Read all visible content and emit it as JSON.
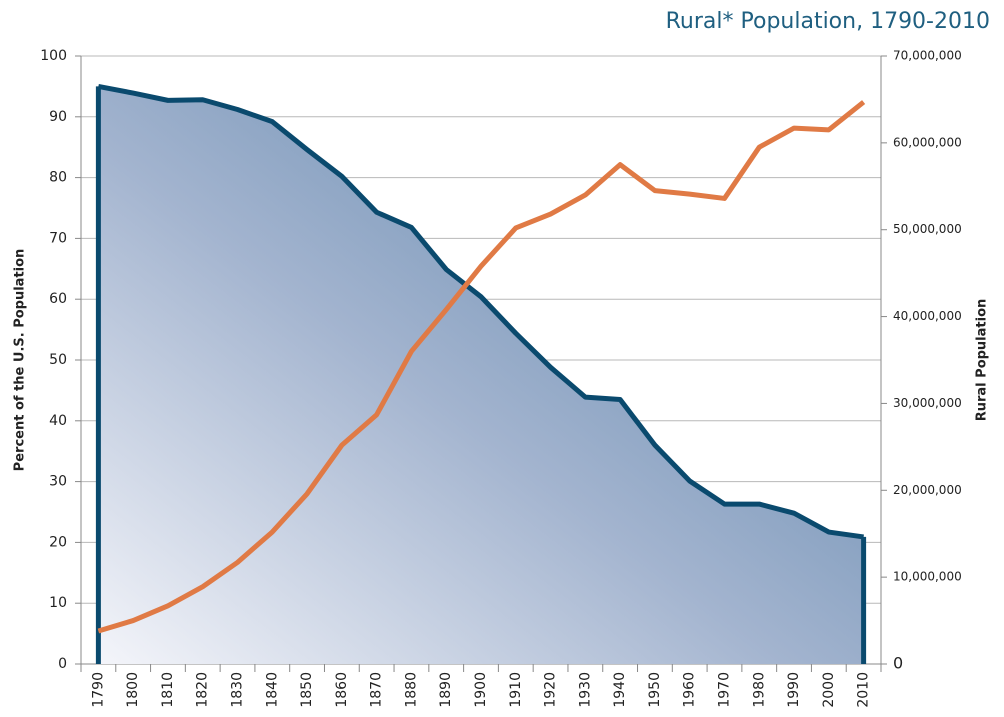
{
  "chart_data": {
    "type": "line",
    "title": "Rural* Population, 1790-2010",
    "ylabel": "Percent of the U.S. Population",
    "y2label": "Rural Population",
    "categories": [
      "1790",
      "1800",
      "1810",
      "1820",
      "1830",
      "1840",
      "1850",
      "1860",
      "1870",
      "1880",
      "1890",
      "1900",
      "1910",
      "1920",
      "1930",
      "1940",
      "1950",
      "1960",
      "1970",
      "1980",
      "1990",
      "2000",
      "2010"
    ],
    "series": [
      {
        "style": "area",
        "color": "#0a4a6e",
        "values": [
          95,
          93.9,
          92.7,
          92.8,
          91.2,
          89.2,
          84.6,
          80.2,
          74.3,
          71.8,
          64.9,
          60.4,
          54.4,
          48.8,
          43.9,
          43.5,
          36,
          30.1,
          26.3,
          26.3,
          24.8,
          21.7,
          20.9
        ]
      },
      {
        "axis": "y2",
        "color": "#e07a45",
        "values": [
          3800000,
          5000000,
          6700000,
          8900000,
          11700000,
          15200000,
          19600000,
          25200000,
          28700000,
          36000000,
          40800000,
          45800000,
          50200000,
          51800000,
          54000000,
          57500000,
          54500000,
          54100000,
          53600000,
          59500000,
          61700000,
          61500000,
          64700000
        ]
      }
    ],
    "ylim": [
      0,
      100
    ],
    "yticks": [
      0,
      10,
      20,
      30,
      40,
      50,
      60,
      70,
      80,
      90,
      100
    ],
    "y2lim": [
      0,
      70000000
    ],
    "y2ticks": [
      0,
      {
        "value": 10000000,
        "label": "10,000,000"
      },
      {
        "value": 20000000,
        "label": "20,000,000"
      },
      {
        "value": 30000000,
        "label": "30,000,000"
      },
      {
        "value": 40000000,
        "label": "40,000,000"
      },
      {
        "value": 50000000,
        "label": "50,000,000"
      },
      {
        "value": 60000000,
        "label": "60,000,000"
      },
      {
        "value": 70000000,
        "label": "70,000,000"
      }
    ],
    "grid": true
  }
}
